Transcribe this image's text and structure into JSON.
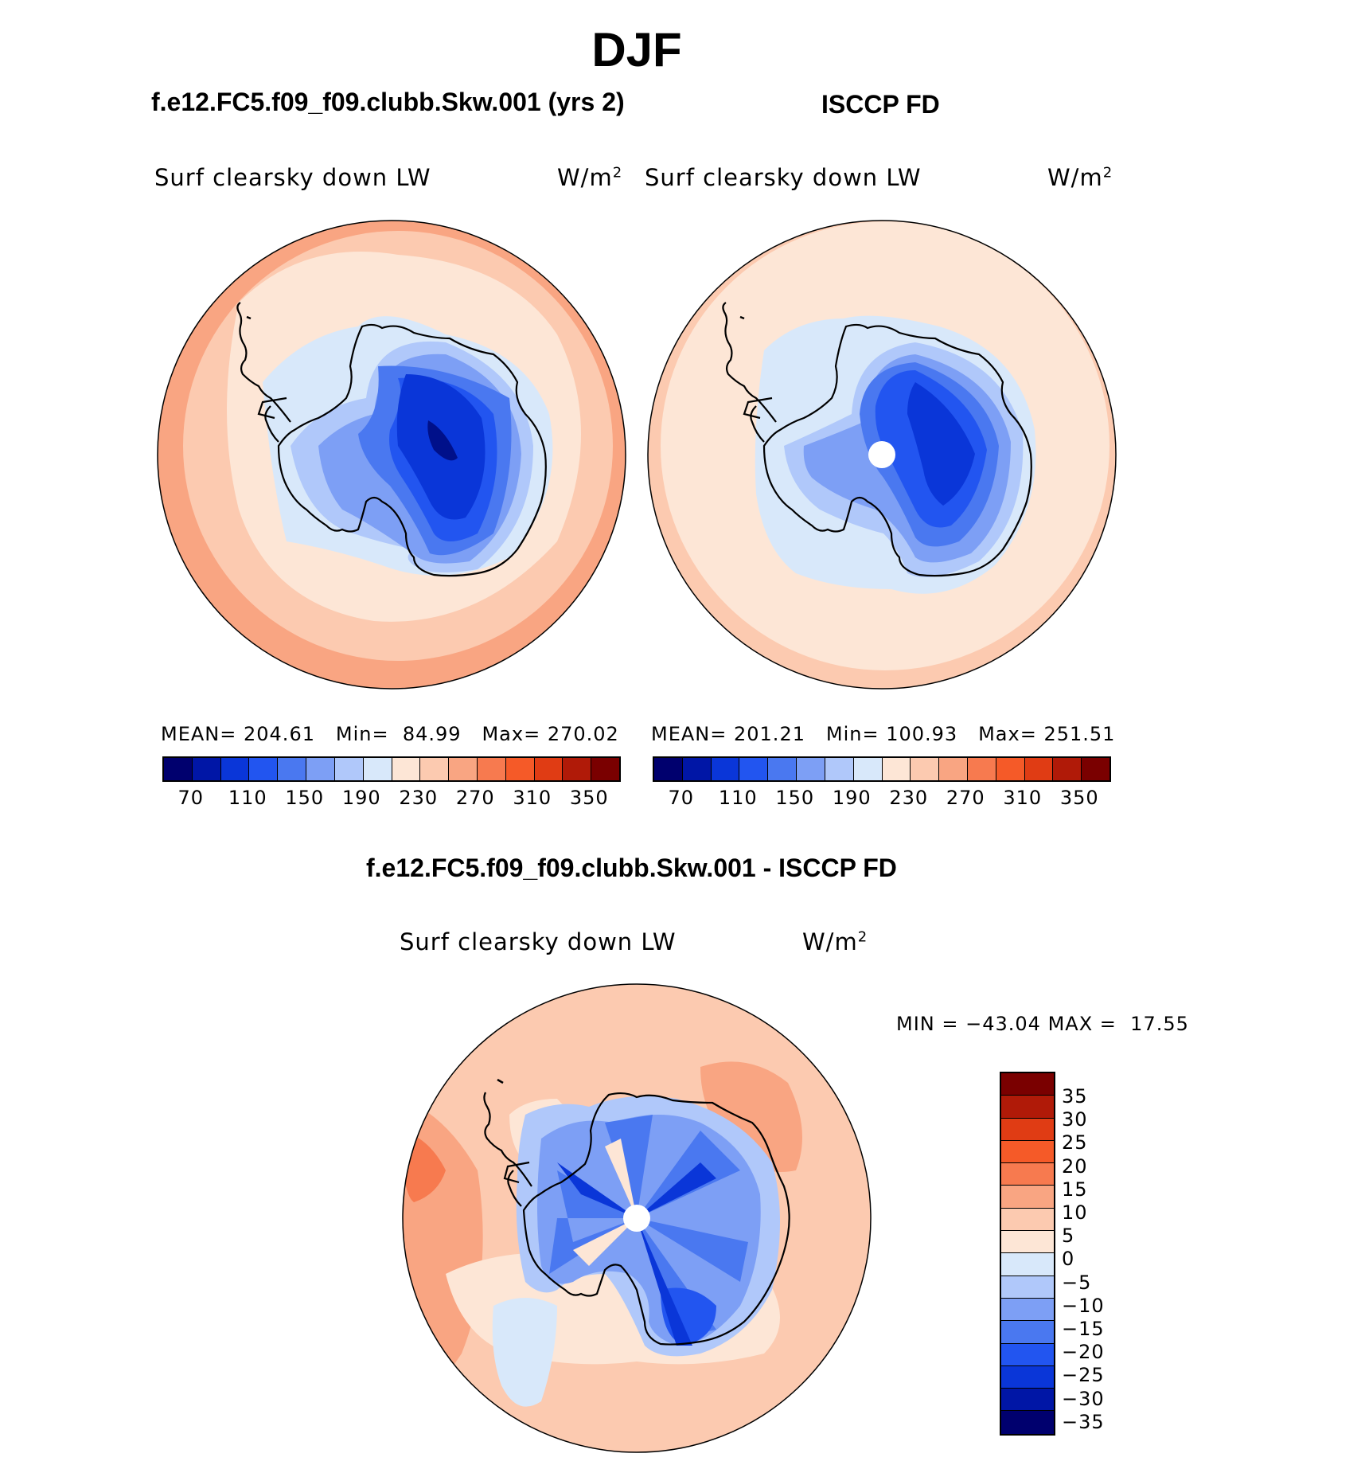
{
  "title": "DJF",
  "panels": [
    {
      "title": "f.e12.FC5.f09_f09.clubb.Skw.001 (yrs 2)",
      "variable": "Surf clearsky down LW",
      "units": "W/m",
      "units_sup": "2",
      "stats": {
        "mean_label": "MEAN=",
        "mean": "204.61",
        "min_label": "Min=",
        "min": "84.99",
        "max_label": "Max=",
        "max": "270.02"
      }
    },
    {
      "title": "ISCCP FD",
      "variable": "Surf clearsky down LW",
      "units": "W/m",
      "units_sup": "2",
      "stats": {
        "mean_label": "MEAN=",
        "mean": "201.21",
        "min_label": "Min=",
        "min": "100.93",
        "max_label": "Max=",
        "max": "251.51"
      }
    },
    {
      "title": "f.e12.FC5.f09_f09.clubb.Skw.001 - ISCCP FD",
      "variable": "Surf clearsky down LW",
      "units": "W/m",
      "units_sup": "2",
      "stats": {
        "min_label": "MIN =",
        "min": "−43.04",
        "max_label": "MAX =",
        "max": "17.55"
      }
    }
  ],
  "colorbar_top": {
    "colors": [
      "#00006e",
      "#0016a6",
      "#0a36d8",
      "#2255f0",
      "#4a78f0",
      "#7d9ff5",
      "#b0c8fa",
      "#d8e8fa",
      "#fde6d6",
      "#fccab0",
      "#f9a582",
      "#f77a4f",
      "#f55a28",
      "#e03c14",
      "#b01a08",
      "#7a0000"
    ],
    "labels": [
      "70",
      "110",
      "150",
      "190",
      "230",
      "270",
      "310",
      "350"
    ]
  },
  "colorbar_diff": {
    "colors": [
      "#7a0000",
      "#b01a08",
      "#e03c14",
      "#f55a28",
      "#f77a4f",
      "#f9a582",
      "#fccab0",
      "#fde6d6",
      "#d8e8fa",
      "#b0c8fa",
      "#7d9ff5",
      "#4a78f0",
      "#2255f0",
      "#0a36d8",
      "#0016a6",
      "#00006e"
    ],
    "labels": [
      "35",
      "30",
      "25",
      "20",
      "15",
      "10",
      "5",
      "0",
      "−5",
      "−10",
      "−15",
      "−20",
      "−25",
      "−30",
      "−35"
    ]
  }
}
